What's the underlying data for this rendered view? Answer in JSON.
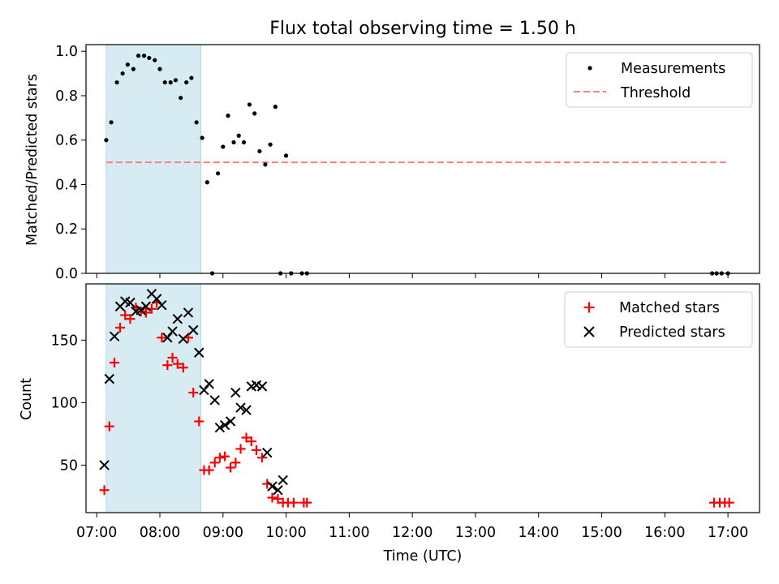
{
  "chart_data": [
    {
      "type": "scatter",
      "title": "Flux total observing time = 1.50 h",
      "xlabel": "",
      "ylabel": "Matched/Predicted stars",
      "xlim": [
        6.83,
        17.5
      ],
      "ylim": [
        0.0,
        1.03
      ],
      "yticks": [
        0.0,
        0.2,
        0.4,
        0.6,
        0.8,
        1.0
      ],
      "ytick_labels": [
        "0.0",
        "0.2",
        "0.4",
        "0.6",
        "0.8",
        "1.0"
      ],
      "shaded_span": {
        "x0": 7.15,
        "x1": 8.65,
        "color": "#add8e6"
      },
      "legend_position": "top-right",
      "series": [
        {
          "name": "Measurements",
          "marker": "dot",
          "color": "#000000",
          "x": [
            7.15,
            7.23,
            7.32,
            7.41,
            7.49,
            7.58,
            7.66,
            7.75,
            7.83,
            7.92,
            8.0,
            8.08,
            8.17,
            8.25,
            8.33,
            8.42,
            8.5,
            8.58,
            8.67,
            8.75,
            8.83,
            8.92,
            9.0,
            9.08,
            9.17,
            9.25,
            9.33,
            9.42,
            9.5,
            9.58,
            9.67,
            9.75,
            9.83,
            9.91,
            10.0,
            10.08,
            10.25,
            10.33,
            16.75,
            16.82,
            16.9,
            17.0
          ],
          "y": [
            0.6,
            0.68,
            0.86,
            0.9,
            0.94,
            0.92,
            0.98,
            0.98,
            0.97,
            0.96,
            0.92,
            0.86,
            0.86,
            0.87,
            0.79,
            0.86,
            0.88,
            0.68,
            0.61,
            0.41,
            0.0,
            0.45,
            0.57,
            0.71,
            0.59,
            0.62,
            0.59,
            0.76,
            0.72,
            0.55,
            0.49,
            0.58,
            0.75,
            0.0,
            0.53,
            0.0,
            0.0,
            0.0,
            0.0,
            0.0,
            0.0,
            0.0
          ]
        },
        {
          "name": "Threshold",
          "marker": "dashed-line",
          "color": "#ff7f7f",
          "x": [
            7.15,
            17.0
          ],
          "y": [
            0.5,
            0.5
          ]
        }
      ]
    },
    {
      "type": "scatter",
      "title": "",
      "xlabel": "Time (UTC)",
      "ylabel": "Count",
      "xlim": [
        6.83,
        17.5
      ],
      "ylim": [
        12,
        195
      ],
      "yticks": [
        50,
        100,
        150
      ],
      "ytick_labels": [
        "50",
        "100",
        "150"
      ],
      "xticks": [
        7,
        8,
        9,
        10,
        11,
        12,
        13,
        14,
        15,
        16,
        17
      ],
      "xtick_labels": [
        "07:00",
        "08:00",
        "09:00",
        "10:00",
        "11:00",
        "12:00",
        "13:00",
        "14:00",
        "15:00",
        "16:00",
        "17:00"
      ],
      "shaded_span": {
        "x0": 7.15,
        "x1": 8.65,
        "color": "#add8e6"
      },
      "legend_position": "top-right",
      "series": [
        {
          "name": "Matched stars",
          "marker": "plus",
          "color": "#ff0000",
          "x": [
            7.12,
            7.2,
            7.28,
            7.37,
            7.45,
            7.53,
            7.62,
            7.7,
            7.78,
            7.87,
            7.95,
            8.03,
            8.12,
            8.2,
            8.28,
            8.37,
            8.45,
            8.53,
            8.62,
            8.7,
            8.78,
            8.87,
            8.95,
            9.03,
            9.12,
            9.2,
            9.28,
            9.37,
            9.45,
            9.53,
            9.62,
            9.7,
            9.78,
            9.87,
            9.95,
            10.03,
            10.12,
            10.28,
            10.33,
            16.78,
            16.87,
            16.95,
            17.02
          ],
          "y": [
            30,
            81,
            132,
            160,
            170,
            167,
            176,
            173,
            172,
            175,
            180,
            152,
            130,
            136,
            131,
            128,
            152,
            108,
            85,
            46,
            46,
            52,
            56,
            57,
            48,
            52,
            63,
            72,
            69,
            62,
            56,
            35,
            24,
            23,
            20,
            20,
            20,
            20,
            20,
            20,
            20,
            20,
            20
          ]
        },
        {
          "name": "Predicted stars",
          "marker": "x",
          "color": "#000000",
          "x": [
            7.12,
            7.2,
            7.28,
            7.37,
            7.45,
            7.53,
            7.62,
            7.7,
            7.78,
            7.87,
            7.95,
            8.03,
            8.12,
            8.2,
            8.28,
            8.37,
            8.45,
            8.53,
            8.62,
            8.7,
            8.78,
            8.87,
            8.95,
            9.03,
            9.12,
            9.2,
            9.28,
            9.37,
            9.45,
            9.53,
            9.62,
            9.7,
            9.78,
            9.87,
            9.95
          ],
          "y": [
            50,
            119,
            153,
            177,
            181,
            180,
            173,
            174,
            177,
            187,
            183,
            178,
            152,
            157,
            167,
            151,
            172,
            158,
            140,
            110,
            115,
            102,
            80,
            82,
            85,
            108,
            96,
            94,
            113,
            114,
            113,
            60,
            33,
            30,
            38
          ]
        }
      ]
    }
  ]
}
